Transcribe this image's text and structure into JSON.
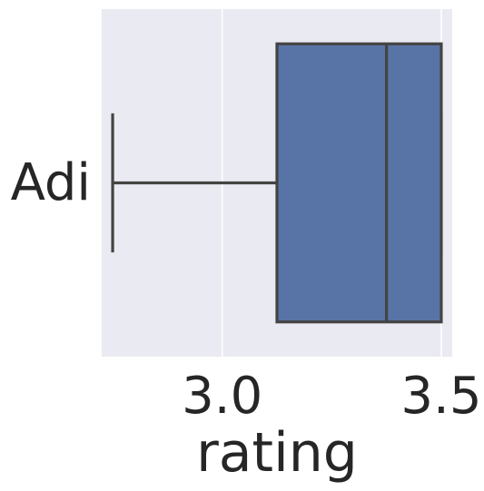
{
  "chart_data": {
    "type": "box",
    "orientation": "horizontal",
    "title": "",
    "xlabel": "rating",
    "ylabel": "",
    "xlim": [
      2.725,
      3.525
    ],
    "xticks": [
      {
        "value": 3.0,
        "label": "3.0"
      },
      {
        "value": 3.5,
        "label": "3.5"
      }
    ],
    "categories": [
      "Adi"
    ],
    "boxes": [
      {
        "category": "Adi",
        "whisker_low": 2.75,
        "q1": 3.125,
        "median": 3.375,
        "q3": 3.5,
        "whisker_high": 3.5
      }
    ],
    "grid": true,
    "colors": {
      "plot_background": "#eaeaf2",
      "grid": "#ffffff",
      "box_fill": "#5874a6",
      "box_edge": "#444444",
      "text": "#262626"
    }
  }
}
